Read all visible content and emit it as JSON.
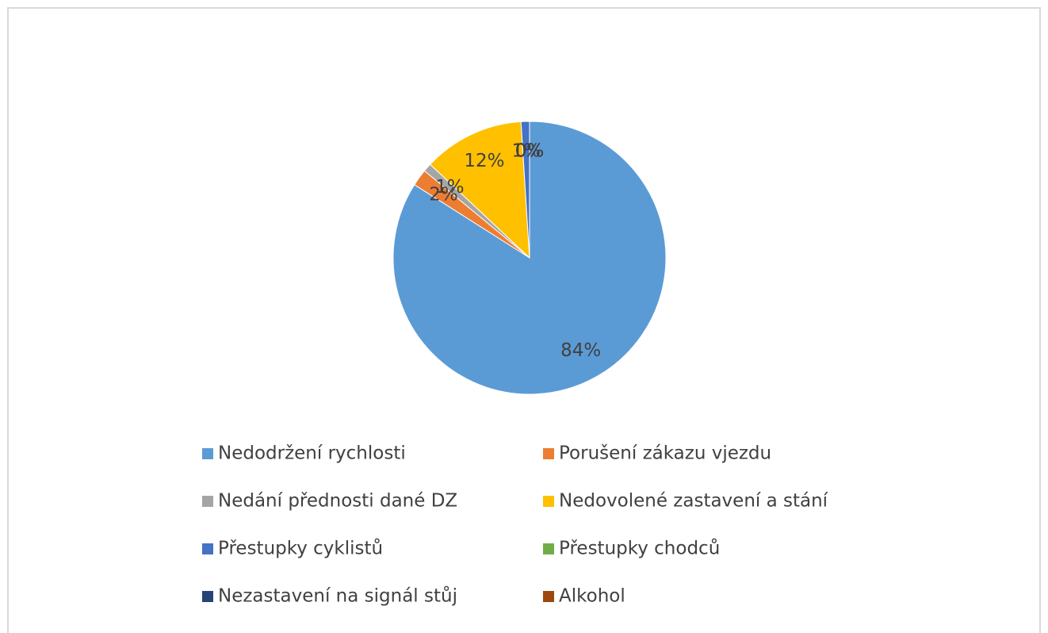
{
  "chart_data": {
    "type": "pie",
    "categories": [
      "Nedodržení rychlosti",
      "Porušení zákazu vjezdu",
      "Nedání přednosti dané DZ",
      "Nedovolené zastavení a stání",
      "Přestupky cyklistů",
      "Přestupky chodců",
      "Nezastavení na signál stůj",
      "Alkohol"
    ],
    "values": [
      84,
      2,
      1,
      12,
      1,
      0,
      0,
      0
    ],
    "value_labels": [
      "84%",
      "2%",
      "1%",
      "12%",
      "1%",
      "0%",
      "0%",
      "0%"
    ],
    "colors": [
      "#5b9bd5",
      "#ed7d31",
      "#a5a5a5",
      "#ffc000",
      "#4472c4",
      "#70ad47",
      "#264478",
      "#9e480e"
    ],
    "legend": "bottom"
  }
}
